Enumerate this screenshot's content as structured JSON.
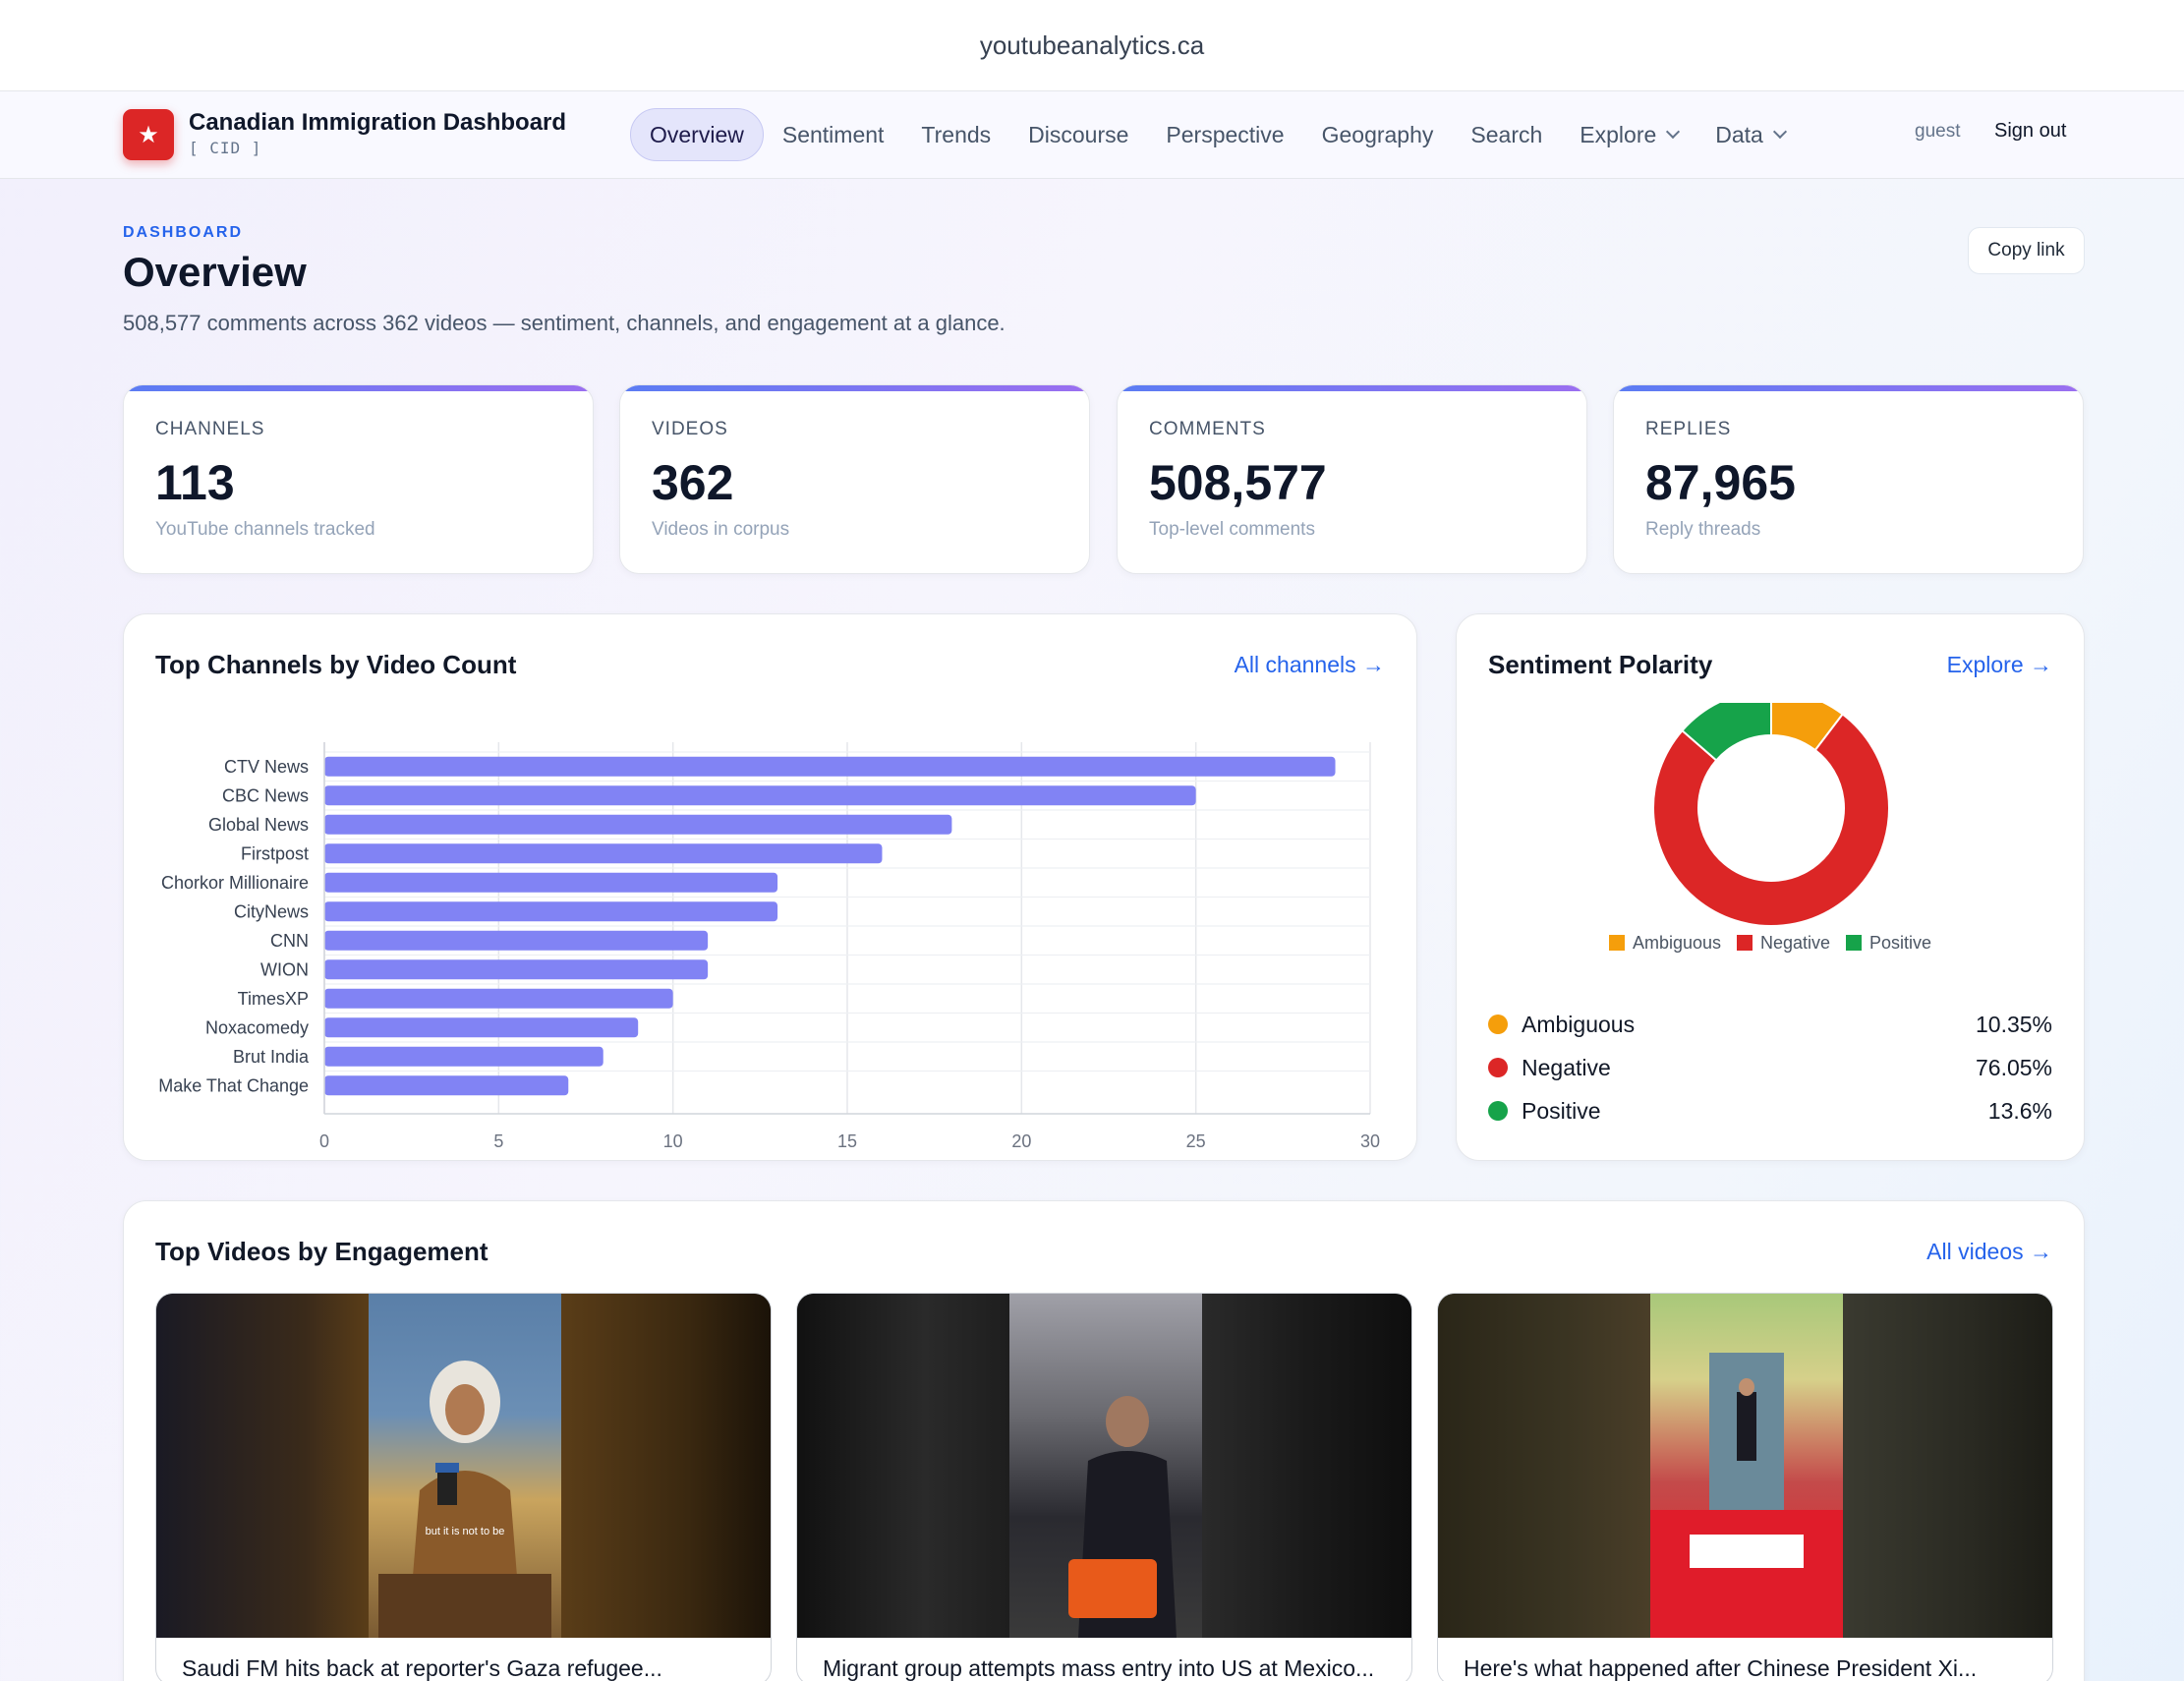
{
  "browser": {
    "url": "youtubeanalytics.ca"
  },
  "brand": {
    "title": "Canadian Immigration Dashboard",
    "subtitle": "[ CID ]",
    "logo_icon": "star-icon"
  },
  "nav": {
    "links": [
      "Overview",
      "Sentiment",
      "Trends",
      "Discourse",
      "Perspective",
      "Geography",
      "Search",
      "Explore",
      "Data"
    ],
    "active": "Overview",
    "user": "guest",
    "signout": "Sign out"
  },
  "header": {
    "eyebrow": "DASHBOARD",
    "title": "Overview",
    "subtitle": "508,577 comments across 362 videos — sentiment, channels, and engagement at a glance.",
    "copy_link": "Copy link"
  },
  "stats": [
    {
      "label": "CHANNELS",
      "value": "113",
      "hint": "YouTube channels tracked"
    },
    {
      "label": "VIDEOS",
      "value": "362",
      "hint": "Videos in corpus"
    },
    {
      "label": "COMMENTS",
      "value": "508,577",
      "hint": "Top-level comments"
    },
    {
      "label": "REPLIES",
      "value": "87,965",
      "hint": "Reply threads"
    }
  ],
  "channels_panel": {
    "title": "Top Channels by Video Count",
    "link": "All channels →"
  },
  "sentiment_panel": {
    "title": "Sentiment Polarity",
    "link": "Explore →",
    "items": [
      {
        "name": "Ambiguous",
        "pct": "10.35%",
        "color": "#f59e0b"
      },
      {
        "name": "Negative",
        "pct": "76.05%",
        "color": "#dc2626"
      },
      {
        "name": "Positive",
        "pct": "13.6%",
        "color": "#16a34a"
      }
    ]
  },
  "videos_panel": {
    "title": "Top Videos by Engagement",
    "link": "All videos →",
    "videos": [
      {
        "title": "Saudi FM hits back at reporter's Gaza refugee...",
        "caption": "but it is not to be"
      },
      {
        "title": "Migrant group attempts mass entry into US at Mexico...",
        "caption": ""
      },
      {
        "title": "Here's what happened after Chinese President Xi...",
        "caption": ""
      }
    ]
  },
  "chart_data": [
    {
      "type": "bar",
      "orientation": "horizontal",
      "categories": [
        "CTV News",
        "CBC News",
        "Global News",
        "Firstpost",
        "Chorkor Millionaire",
        "CityNews",
        "CNN",
        "WION",
        "TimesXP",
        "Noxacomedy",
        "Brut India",
        "Make That Change"
      ],
      "values": [
        29,
        25,
        18,
        16,
        13,
        13,
        11,
        11,
        10,
        9,
        8,
        7
      ],
      "xlim": [
        0,
        30
      ],
      "xticks": [
        0,
        5,
        10,
        15,
        20,
        25,
        30
      ],
      "grid": true,
      "color": "#8183f4"
    },
    {
      "type": "pie",
      "variant": "donut",
      "categories": [
        "Ambiguous",
        "Negative",
        "Positive"
      ],
      "values": [
        10.35,
        76.05,
        13.6
      ],
      "colors": [
        "#f59e0b",
        "#dc2626",
        "#16a34a"
      ],
      "legend": "bottom"
    }
  ]
}
